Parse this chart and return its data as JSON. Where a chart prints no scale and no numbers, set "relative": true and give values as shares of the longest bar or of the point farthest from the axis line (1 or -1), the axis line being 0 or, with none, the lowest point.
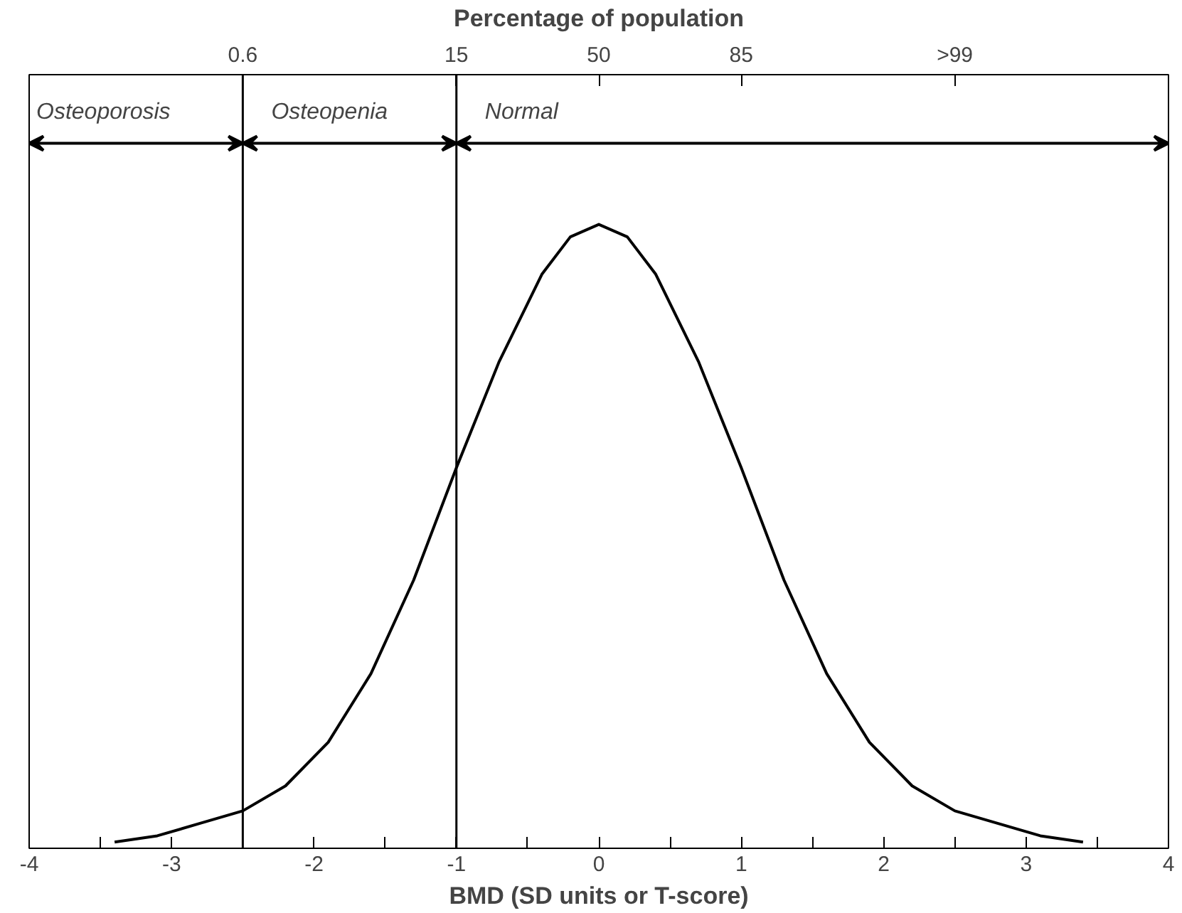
{
  "chart_data": {
    "type": "line",
    "relative": true,
    "xlabel": "BMD (SD units or T-score)",
    "x2label": "Percentage of population",
    "x": [
      -3.4,
      -3.1,
      -2.8,
      -2.5,
      -2.2,
      -1.9,
      -1.6,
      -1.3,
      -1,
      -0.7,
      -0.4,
      -0.2,
      0,
      0.2,
      0.4,
      0.7,
      1,
      1.3,
      1.6,
      1.9,
      2.2,
      2.5,
      2.8,
      3.1,
      3.4
    ],
    "series": [
      {
        "color": "#000000",
        "values": [
          0.01,
          0.02,
          0.04,
          0.06,
          0.1,
          0.17,
          0.28,
          0.43,
          0.61,
          0.78,
          0.92,
          0.98,
          1,
          0.98,
          0.92,
          0.78,
          0.61,
          0.43,
          0.28,
          0.17,
          0.1,
          0.06,
          0.04,
          0.02,
          0.01
        ]
      }
    ],
    "xlim": [
      -4,
      4
    ],
    "xticks": [
      -4,
      {
        "value": -3.5,
        "label": null
      },
      -3,
      {
        "value": -2.5,
        "label": null
      },
      -2,
      {
        "value": -1.5,
        "label": null
      },
      -1,
      {
        "value": -0.5,
        "label": null
      },
      0,
      {
        "value": 0.5,
        "label": null
      },
      1,
      {
        "value": 1.5,
        "label": null
      },
      2,
      {
        "value": 2.5,
        "label": null
      },
      3,
      {
        "value": 3.5,
        "label": null
      },
      4
    ],
    "annotations": [
      {
        "text": "0.6",
        "x": -2.5
      },
      {
        "text": "15",
        "x": -1
      },
      {
        "text": "50",
        "x": 0
      },
      {
        "text": "85",
        "x": 1
      },
      {
        "text": ">99",
        "x": 2.5
      },
      "Osteoporosis",
      "Osteopenia",
      "Normal"
    ],
    "ref_lines": [
      {
        "axis": "x",
        "value": -2.5
      },
      {
        "axis": "x",
        "value": -1
      }
    ],
    "grid": false,
    "marker": "none",
    "line_style": "solid",
    "tick_labels": "x"
  }
}
